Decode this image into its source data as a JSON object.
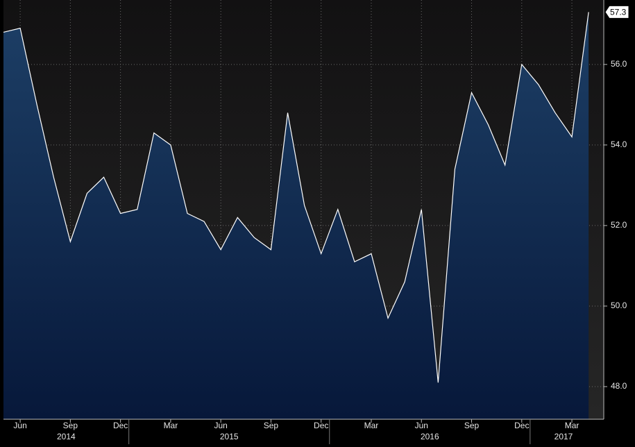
{
  "chart_data": {
    "type": "area",
    "x": [
      "2014-05",
      "2014-06",
      "2014-07",
      "2014-08",
      "2014-09",
      "2014-10",
      "2014-11",
      "2014-12",
      "2015-01",
      "2015-02",
      "2015-03",
      "2015-04",
      "2015-05",
      "2015-06",
      "2015-07",
      "2015-08",
      "2015-09",
      "2015-10",
      "2015-11",
      "2015-12",
      "2016-01",
      "2016-02",
      "2016-03",
      "2016-04",
      "2016-05",
      "2016-06",
      "2016-07",
      "2016-08",
      "2016-09",
      "2016-10",
      "2016-11",
      "2016-12",
      "2017-01",
      "2017-02",
      "2017-03",
      "2017-04"
    ],
    "series": [
      {
        "color": "#ffffff",
        "fill": "#12305a",
        "values": [
          56.8,
          56.9,
          55.0,
          53.2,
          51.6,
          52.8,
          53.2,
          52.3,
          52.4,
          54.3,
          54.0,
          52.3,
          52.1,
          51.4,
          52.2,
          51.7,
          51.4,
          54.8,
          52.5,
          51.3,
          52.4,
          51.1,
          51.3,
          49.7,
          50.6,
          52.4,
          48.1,
          53.4,
          55.3,
          54.5,
          53.5,
          56.0,
          55.5,
          54.8,
          54.2,
          57.3
        ]
      }
    ],
    "xticks": [
      {
        "value": "2014-06",
        "label": "Jun"
      },
      {
        "value": "2014-09",
        "label": "Sep"
      },
      {
        "value": "2014-12",
        "label": "Dec"
      },
      {
        "value": "2015-03",
        "label": "Mar"
      },
      {
        "value": "2015-06",
        "label": "Jun"
      },
      {
        "value": "2015-09",
        "label": "Sep"
      },
      {
        "value": "2015-12",
        "label": "Dec"
      },
      {
        "value": "2016-03",
        "label": "Mar"
      },
      {
        "value": "2016-06",
        "label": "Jun"
      },
      {
        "value": "2016-09",
        "label": "Sep"
      },
      {
        "value": "2016-12",
        "label": "Dec"
      },
      {
        "value": "2017-03",
        "label": "Mar"
      }
    ],
    "years": [
      "2014",
      "2015",
      "2016",
      "2017"
    ],
    "ylim": [
      47.19,
      57.6
    ],
    "yticks": [
      {
        "value": 48,
        "label": "48.0"
      },
      {
        "value": 50,
        "label": "50.0"
      },
      {
        "value": 52,
        "label": "52.0"
      },
      {
        "value": 54,
        "label": "54.0"
      },
      {
        "value": 56,
        "label": "56.0"
      }
    ],
    "grid": true
  }
}
